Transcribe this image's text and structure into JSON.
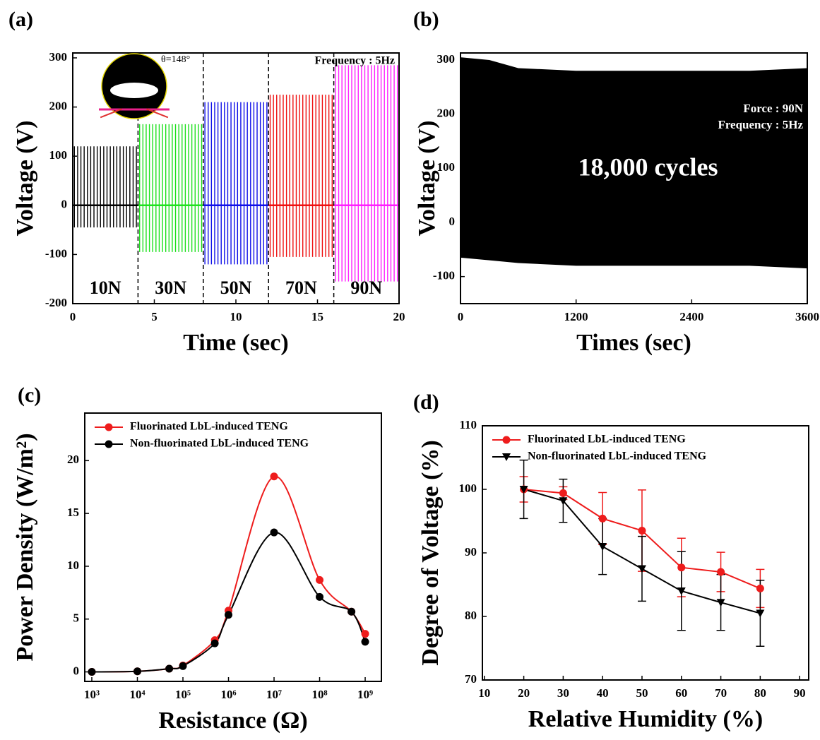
{
  "chart_data": [
    {
      "type": "segments",
      "label": "(a)",
      "xlabel": "Time (sec)",
      "ylabel": "Voltage (V)",
      "xlim": [
        0,
        20
      ],
      "ylim": [
        -200,
        310
      ],
      "xticks": [
        0,
        5,
        10,
        15,
        20
      ],
      "yticks": [
        -200,
        -100,
        0,
        100,
        200,
        300
      ],
      "annotation": "Frequency : 5Hz",
      "inset_label": "θ=148°",
      "segments": [
        {
          "name": "10N",
          "color": "#000000",
          "start": 0,
          "end": 4,
          "max": 120,
          "min": -45
        },
        {
          "name": "30N",
          "color": "#1ee01e",
          "start": 4,
          "end": 8,
          "max": 165,
          "min": -95
        },
        {
          "name": "50N",
          "color": "#1010e8",
          "start": 8,
          "end": 12,
          "max": 210,
          "min": -120
        },
        {
          "name": "70N",
          "color": "#ee1010",
          "start": 12,
          "end": 16,
          "max": 225,
          "min": -105
        },
        {
          "name": "90N",
          "color": "#ff1eff",
          "start": 16,
          "end": 20,
          "max": 285,
          "min": -155
        }
      ]
    },
    {
      "type": "band",
      "label": "(b)",
      "xlabel": "Times (sec)",
      "ylabel": "Voltage (V)",
      "xlim": [
        0,
        3600
      ],
      "ylim": [
        -150,
        313
      ],
      "xticks": [
        0,
        1200,
        2400,
        3600
      ],
      "yticks": [
        -100,
        0,
        100,
        200,
        300
      ],
      "annotations": [
        "Force : 90N",
        "Frequency : 5Hz",
        "18,000 cycles"
      ],
      "color": "#000000",
      "x": [
        0,
        300,
        600,
        1200,
        1800,
        2400,
        3000,
        3600
      ],
      "upper": [
        305,
        300,
        285,
        280,
        280,
        280,
        280,
        285
      ],
      "lower": [
        -65,
        -70,
        -75,
        -80,
        -80,
        -80,
        -80,
        -85
      ]
    },
    {
      "type": "line",
      "label": "(c)",
      "xlabel": "Resistance (Ω)",
      "ylabel": "Power Density (W/m²)",
      "xscale": "log",
      "xlim": [
        700,
        2270000000
      ],
      "ylim": [
        -0.9,
        24.5
      ],
      "xticks": [
        {
          "value": 1000,
          "label": "10³"
        },
        {
          "value": 10000,
          "label": "10⁴"
        },
        {
          "value": 100000,
          "label": "10⁵"
        },
        {
          "value": 1000000,
          "label": "10⁶"
        },
        {
          "value": 10000000,
          "label": "10⁷"
        },
        {
          "value": 100000000,
          "label": "10⁸"
        },
        {
          "value": 1000000000,
          "label": "10⁹"
        }
      ],
      "yticks": [
        0,
        5,
        10,
        15,
        20
      ],
      "legend": "upper left",
      "x": [
        1000,
        10000,
        50000,
        100000,
        500000,
        1000000,
        10000000,
        100000000,
        500000000,
        1000000000
      ],
      "series": [
        {
          "name": "Fluorinated LbL-induced TENG",
          "color": "#ee1c1c",
          "values": [
            0,
            0.05,
            0.3,
            0.6,
            3.0,
            5.8,
            18.5,
            8.7,
            5.7,
            3.6
          ]
        },
        {
          "name": "Non-fluorinated LbL-induced TENG",
          "color": "#000000",
          "values": [
            0,
            0.05,
            0.3,
            0.55,
            2.7,
            5.4,
            13.2,
            7.1,
            5.7,
            2.85
          ]
        }
      ]
    },
    {
      "type": "errorbar",
      "label": "(d)",
      "xlabel": "Relative Humidity (%)",
      "ylabel": "Degree of Voltage (%)",
      "xlim": [
        9.5,
        92.3
      ],
      "ylim": [
        70,
        110
      ],
      "xticks": [
        10,
        20,
        30,
        40,
        50,
        60,
        70,
        80,
        90
      ],
      "yticks": [
        70,
        80,
        90,
        100,
        110
      ],
      "legend": "upper left",
      "x": [
        20,
        30,
        40,
        50,
        60,
        70,
        80
      ],
      "series": [
        {
          "name": "Fluorinated LbL-induced TENG",
          "color": "#ee1c1c",
          "marker": "circle",
          "values": [
            100,
            99.4,
            95.4,
            93.5,
            87.7,
            87,
            84.4
          ],
          "errors": [
            2,
            1,
            4.1,
            6.4,
            4.6,
            3.1,
            3
          ]
        },
        {
          "name": "Non-fluorinated LbL-induced TENG",
          "color": "#000000",
          "marker": "triangle-down",
          "values": [
            100,
            98.2,
            91,
            87.5,
            84,
            82.2,
            80.5
          ],
          "errors": [
            4.6,
            3.4,
            4.4,
            5.1,
            6.2,
            4.4,
            5.2
          ]
        }
      ]
    }
  ]
}
